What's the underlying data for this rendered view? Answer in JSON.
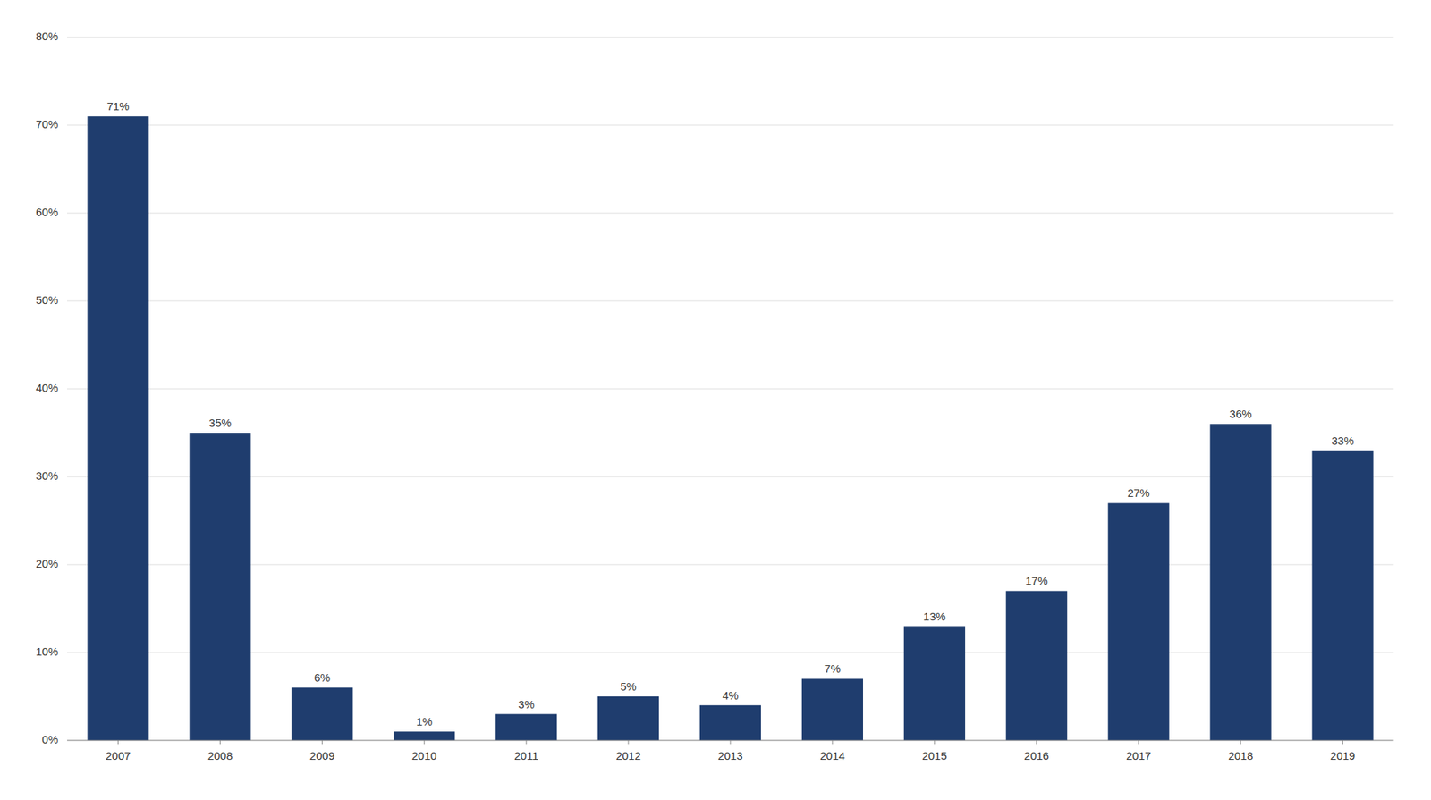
{
  "chart_data": {
    "type": "bar",
    "categories": [
      "2007",
      "2008",
      "2009",
      "2010",
      "2011",
      "2012",
      "2013",
      "2014",
      "2015",
      "2016",
      "2017",
      "2018",
      "2019"
    ],
    "values": [
      71,
      35,
      6,
      1,
      3,
      5,
      4,
      7,
      13,
      17,
      27,
      36,
      33
    ],
    "value_labels": [
      "71%",
      "35%",
      "6%",
      "1%",
      "3%",
      "5%",
      "4%",
      "7%",
      "13%",
      "17%",
      "27%",
      "36%",
      "33%"
    ],
    "color": "#1f3d6e",
    "ylim": [
      0,
      80
    ],
    "yticks": [
      {
        "value": 0,
        "label": "0%"
      },
      {
        "value": 10,
        "label": "10%"
      },
      {
        "value": 20,
        "label": "20%"
      },
      {
        "value": 30,
        "label": "30%"
      },
      {
        "value": 40,
        "label": "40%"
      },
      {
        "value": 50,
        "label": "50%"
      },
      {
        "value": 60,
        "label": "60%"
      },
      {
        "value": 70,
        "label": "70%"
      },
      {
        "value": 80,
        "label": "80%"
      }
    ],
    "grid": true,
    "data_labels": true
  }
}
